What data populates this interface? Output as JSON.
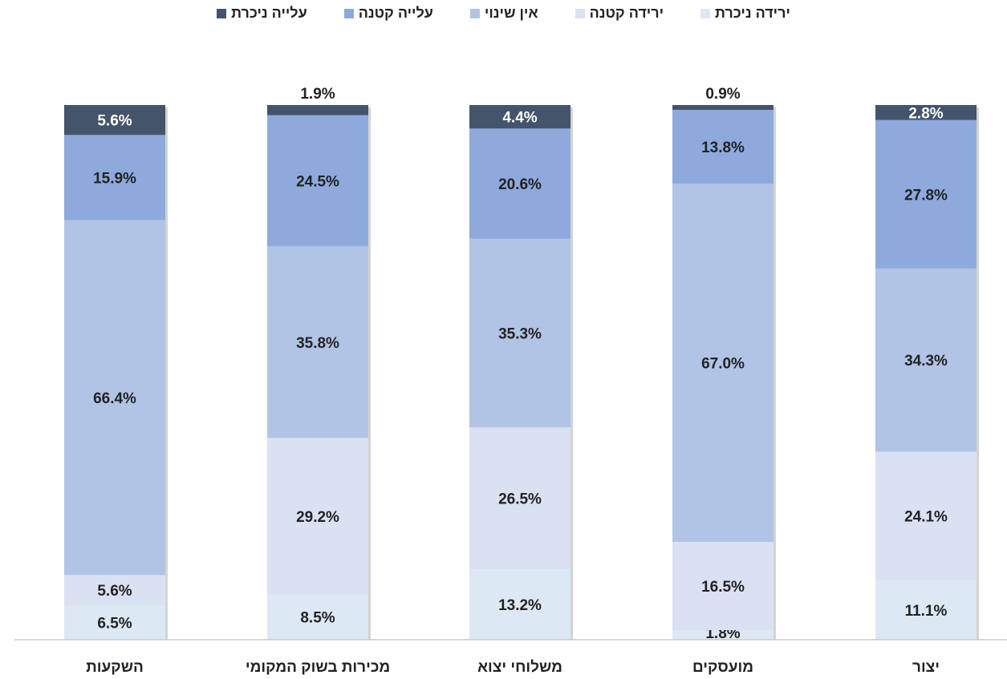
{
  "chart_data": {
    "type": "bar",
    "stacked": true,
    "percent_stacked": true,
    "direction": "rtl",
    "categories": [
      "יצור",
      "מועסקים",
      "משלוחי יצוא",
      "מכירות בשוק המקומי",
      "השקעות"
    ],
    "series": [
      {
        "name": "ירידה ניכרת",
        "color": "#dde8f5",
        "values": [
          11.1,
          1.8,
          13.2,
          8.5,
          6.5
        ],
        "labels": [
          "11.1%",
          "1.8%",
          "13.2%",
          "8.5%",
          "6.5%"
        ]
      },
      {
        "name": "ירידה קטנה",
        "color": "#dae1f2",
        "values": [
          24.1,
          16.5,
          26.5,
          29.2,
          5.6
        ],
        "labels": [
          "24.1%",
          "16.5%",
          "26.5%",
          "29.2%",
          "5.6%"
        ]
      },
      {
        "name": "אין שינוי",
        "color": "#b2c4e5",
        "values": [
          34.3,
          67.0,
          35.3,
          35.8,
          66.4
        ],
        "labels": [
          "34.3%",
          "67.0%",
          "35.3%",
          "35.8%",
          "66.4%"
        ]
      },
      {
        "name": "עלייה קטנה",
        "color": "#8eaadc",
        "values": [
          27.8,
          13.8,
          20.6,
          24.5,
          15.9
        ],
        "labels": [
          "27.8%",
          "13.8%",
          "20.6%",
          "24.5%",
          "15.9%"
        ]
      },
      {
        "name": "עלייה ניכרת",
        "color": "#44546a",
        "values": [
          2.8,
          0.9,
          4.4,
          1.9,
          5.6
        ],
        "labels": [
          "2.8%",
          "0.9%",
          "4.4%",
          "1.9%",
          "5.6%"
        ]
      }
    ],
    "legend_position": "top",
    "ylim": [
      0,
      100
    ],
    "grid": false
  }
}
